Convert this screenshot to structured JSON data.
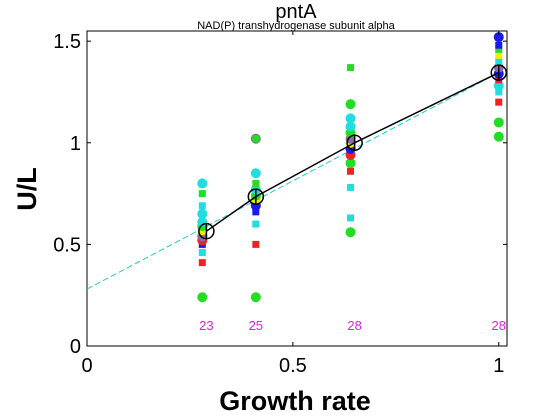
{
  "chart_data": {
    "type": "scatter",
    "title": "pntA",
    "subtitle": "NAD(P) transhydrogenase subunit alpha",
    "xlabel": "Growth rate",
    "ylabel": "U/L",
    "xlim": [
      0,
      1.02
    ],
    "ylim": [
      0,
      1.55
    ],
    "xticks": [
      {
        "value": 0,
        "label": "0"
      },
      {
        "value": 0.5,
        "label": "0.5"
      },
      {
        "value": 1,
        "label": "1"
      }
    ],
    "yticks": [
      {
        "value": 0,
        "label": "0"
      },
      {
        "value": 0.5,
        "label": "0.5"
      },
      {
        "value": 1,
        "label": "1"
      },
      {
        "value": 1.5,
        "label": "1.5"
      }
    ],
    "grid": false,
    "legend": "none",
    "colors": {
      "green": "#22dd22",
      "cyan": "#22dddd",
      "blue": "#1a1aee",
      "red": "#ee2222",
      "yellow": "#eeee00",
      "purple": "#8a6aa8",
      "mean_line": "#000000",
      "fit_line": "#22cccc",
      "count_text": "#e020e0"
    },
    "sample_counts": [
      {
        "x": 0.29,
        "label": "23"
      },
      {
        "x": 0.41,
        "label": "25"
      },
      {
        "x": 0.65,
        "label": "28"
      },
      {
        "x": 1.0,
        "label": "28"
      }
    ],
    "points": [
      {
        "x": 0.28,
        "y": 0.24,
        "color": "green",
        "shape": "circle"
      },
      {
        "x": 0.28,
        "y": 0.41,
        "color": "red",
        "shape": "square"
      },
      {
        "x": 0.28,
        "y": 0.46,
        "color": "cyan",
        "shape": "square"
      },
      {
        "x": 0.28,
        "y": 0.5,
        "color": "blue",
        "shape": "square"
      },
      {
        "x": 0.28,
        "y": 0.52,
        "color": "red",
        "shape": "circle"
      },
      {
        "x": 0.28,
        "y": 0.54,
        "color": "purple",
        "shape": "circle"
      },
      {
        "x": 0.28,
        "y": 0.57,
        "color": "yellow",
        "shape": "circle"
      },
      {
        "x": 0.28,
        "y": 0.59,
        "color": "green",
        "shape": "circle"
      },
      {
        "x": 0.28,
        "y": 0.61,
        "color": "cyan",
        "shape": "circle"
      },
      {
        "x": 0.28,
        "y": 0.65,
        "color": "cyan",
        "shape": "circle"
      },
      {
        "x": 0.28,
        "y": 0.69,
        "color": "cyan",
        "shape": "square"
      },
      {
        "x": 0.28,
        "y": 0.75,
        "color": "green",
        "shape": "square"
      },
      {
        "x": 0.28,
        "y": 0.8,
        "color": "cyan",
        "shape": "circle"
      },
      {
        "x": 0.41,
        "y": 0.24,
        "color": "green",
        "shape": "circle"
      },
      {
        "x": 0.41,
        "y": 0.5,
        "color": "red",
        "shape": "square"
      },
      {
        "x": 0.41,
        "y": 0.6,
        "color": "cyan",
        "shape": "square"
      },
      {
        "x": 0.41,
        "y": 0.66,
        "color": "blue",
        "shape": "square"
      },
      {
        "x": 0.41,
        "y": 0.69,
        "color": "blue",
        "shape": "circle"
      },
      {
        "x": 0.41,
        "y": 0.72,
        "color": "yellow",
        "shape": "circle"
      },
      {
        "x": 0.41,
        "y": 0.74,
        "color": "green",
        "shape": "circle"
      },
      {
        "x": 0.41,
        "y": 0.77,
        "color": "cyan",
        "shape": "circle"
      },
      {
        "x": 0.41,
        "y": 0.8,
        "color": "green",
        "shape": "square"
      },
      {
        "x": 0.41,
        "y": 0.85,
        "color": "cyan",
        "shape": "circle"
      },
      {
        "x": 0.41,
        "y": 1.02,
        "color": "purple",
        "shape": "circle"
      },
      {
        "x": 0.41,
        "y": 1.02,
        "color": "green",
        "shape": "square"
      },
      {
        "x": 0.64,
        "y": 0.56,
        "color": "green",
        "shape": "circle"
      },
      {
        "x": 0.64,
        "y": 0.63,
        "color": "cyan",
        "shape": "square"
      },
      {
        "x": 0.64,
        "y": 0.78,
        "color": "cyan",
        "shape": "square"
      },
      {
        "x": 0.64,
        "y": 0.86,
        "color": "red",
        "shape": "square"
      },
      {
        "x": 0.64,
        "y": 0.9,
        "color": "green",
        "shape": "circle"
      },
      {
        "x": 0.64,
        "y": 0.94,
        "color": "red",
        "shape": "circle"
      },
      {
        "x": 0.64,
        "y": 0.97,
        "color": "blue",
        "shape": "circle"
      },
      {
        "x": 0.64,
        "y": 1.0,
        "color": "yellow",
        "shape": "circle"
      },
      {
        "x": 0.64,
        "y": 1.02,
        "color": "purple",
        "shape": "circle"
      },
      {
        "x": 0.64,
        "y": 1.05,
        "color": "green",
        "shape": "circle"
      },
      {
        "x": 0.64,
        "y": 1.08,
        "color": "cyan",
        "shape": "circle"
      },
      {
        "x": 0.64,
        "y": 1.12,
        "color": "cyan",
        "shape": "circle"
      },
      {
        "x": 0.64,
        "y": 1.19,
        "color": "green",
        "shape": "circle"
      },
      {
        "x": 0.64,
        "y": 1.37,
        "color": "green",
        "shape": "square"
      },
      {
        "x": 1.0,
        "y": 1.03,
        "color": "green",
        "shape": "circle"
      },
      {
        "x": 1.0,
        "y": 1.1,
        "color": "green",
        "shape": "circle"
      },
      {
        "x": 1.0,
        "y": 1.2,
        "color": "red",
        "shape": "square"
      },
      {
        "x": 1.0,
        "y": 1.25,
        "color": "cyan",
        "shape": "square"
      },
      {
        "x": 1.0,
        "y": 1.28,
        "color": "cyan",
        "shape": "circle"
      },
      {
        "x": 1.0,
        "y": 1.31,
        "color": "red",
        "shape": "square"
      },
      {
        "x": 1.0,
        "y": 1.34,
        "color": "blue",
        "shape": "circle"
      },
      {
        "x": 1.0,
        "y": 1.37,
        "color": "purple",
        "shape": "circle"
      },
      {
        "x": 1.0,
        "y": 1.4,
        "color": "cyan",
        "shape": "square"
      },
      {
        "x": 1.0,
        "y": 1.43,
        "color": "yellow",
        "shape": "square"
      },
      {
        "x": 1.0,
        "y": 1.46,
        "color": "green",
        "shape": "square"
      },
      {
        "x": 1.0,
        "y": 1.48,
        "color": "blue",
        "shape": "square"
      },
      {
        "x": 1.0,
        "y": 1.52,
        "color": "blue",
        "shape": "circle"
      }
    ],
    "means": [
      {
        "x": 0.29,
        "y": 0.565,
        "err": 0.04
      },
      {
        "x": 0.41,
        "y": 0.735,
        "err": 0.04
      },
      {
        "x": 0.65,
        "y": 1.0,
        "err": 0.04
      },
      {
        "x": 1.0,
        "y": 1.345,
        "err": 0.04
      }
    ],
    "fit_line": {
      "x": [
        0,
        1.0
      ],
      "y": [
        0.28,
        1.345
      ]
    }
  }
}
